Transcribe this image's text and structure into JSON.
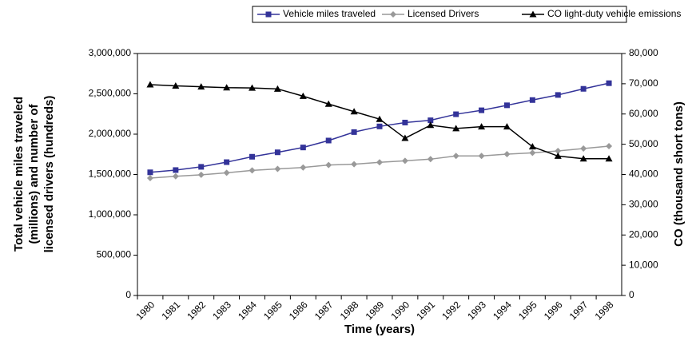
{
  "chart_data": {
    "type": "line",
    "xlabel": "Time (years)",
    "ylabel": [
      "Total vehicle miles traveled",
      "(millions) and number of",
      "licensed drivers (hundreds)"
    ],
    "y2label": "CO (thousand short tons)",
    "categories": [
      "1980",
      "1981",
      "1982",
      "1983",
      "1984",
      "1985",
      "1986",
      "1987",
      "1988",
      "1989",
      "1990",
      "1991",
      "1992",
      "1993",
      "1994",
      "1995",
      "1996",
      "1997",
      "1998"
    ],
    "series": [
      {
        "name": "Vehicle miles traveled",
        "color": "#333399",
        "marker": "square",
        "values": [
          1527000,
          1555000,
          1595000,
          1653000,
          1720000,
          1775000,
          1835000,
          1921000,
          2026000,
          2096000,
          2144000,
          2172000,
          2247000,
          2296000,
          2358000,
          2423000,
          2486000,
          2562000,
          2632000
        ]
      },
      {
        "name": "Licensed Drivers",
        "color": "#999999",
        "marker": "diamond",
        "values": [
          1456000,
          1478000,
          1496000,
          1521000,
          1551000,
          1569000,
          1587000,
          1617000,
          1628000,
          1651000,
          1670000,
          1690000,
          1730000,
          1730000,
          1752000,
          1768000,
          1792000,
          1822000,
          1852000
        ]
      },
      {
        "name": "CO light-duty vehicle emissions",
        "color": "#000000",
        "marker": "triangle",
        "axis": "y2",
        "values": [
          69700,
          69300,
          69000,
          68700,
          68600,
          68300,
          65900,
          63300,
          60800,
          58300,
          52000,
          56300,
          55200,
          55800,
          55800,
          49200,
          46100,
          45200,
          45200
        ]
      }
    ],
    "ylim": [
      0,
      3000000
    ],
    "yticks": [
      0,
      {
        "value": 500000,
        "label": "500,000"
      },
      {
        "value": 1000000,
        "label": "1,000,000"
      },
      {
        "value": 1500000,
        "label": "1,500,000"
      },
      {
        "value": 2000000,
        "label": "2,000,000"
      },
      {
        "value": 2500000,
        "label": "2,500,000"
      },
      {
        "value": 3000000,
        "label": "3,000,000"
      }
    ],
    "y2lim": [
      0,
      80000
    ],
    "y2ticks": [
      0,
      {
        "value": 10000,
        "label": "10,000"
      },
      {
        "value": 20000,
        "label": "20,000"
      },
      {
        "value": 30000,
        "label": "30,000"
      },
      {
        "value": 40000,
        "label": "40,000"
      },
      {
        "value": 50000,
        "label": "50,000"
      },
      {
        "value": 60000,
        "label": "60,000"
      },
      {
        "value": 70000,
        "label": "70,000"
      },
      {
        "value": 80000,
        "label": "80,000"
      }
    ],
    "legend": "top"
  }
}
